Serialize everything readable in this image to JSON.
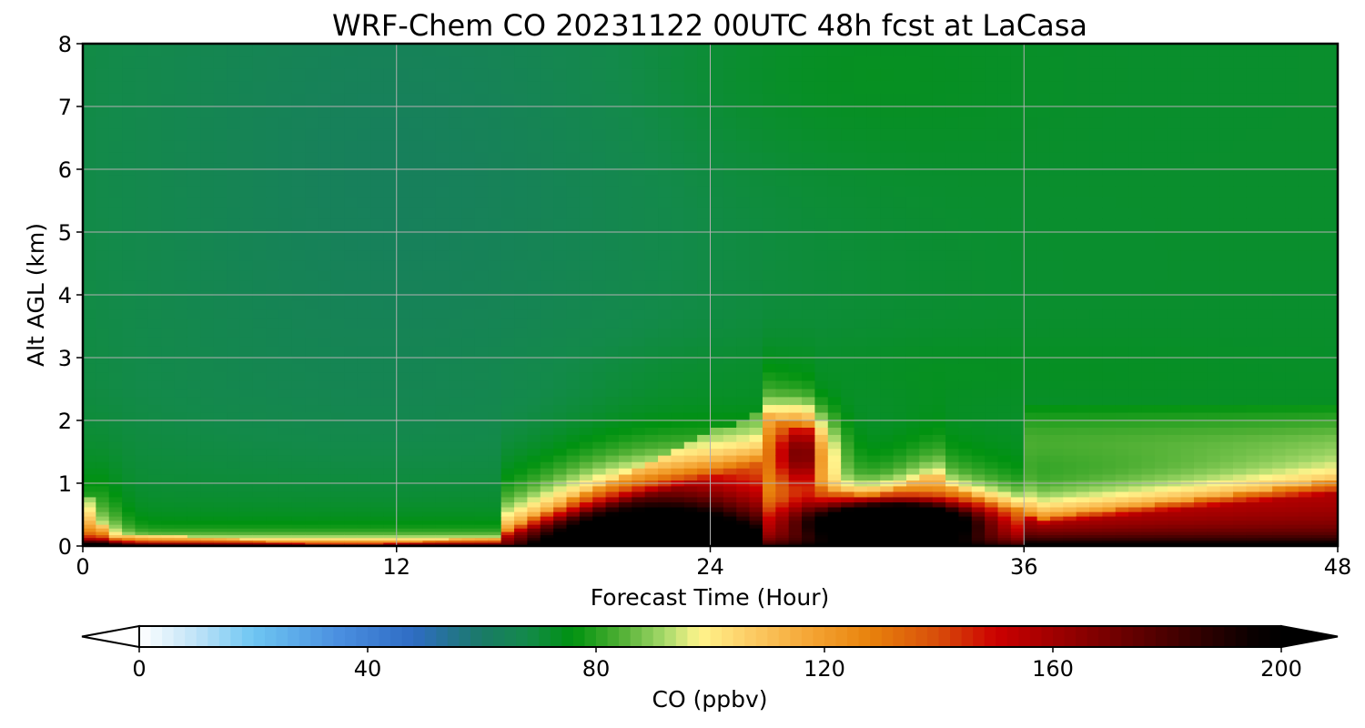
{
  "chart_data": {
    "type": "heatmap",
    "title": "WRF-Chem CO  20231122 00UTC 48h fcst at LaCasa",
    "xlabel": "Forecast Time (Hour)",
    "ylabel": "Alt AGL (km)",
    "xlim": [
      0,
      48
    ],
    "ylim": [
      0,
      8
    ],
    "xticks": [
      "0",
      "12",
      "24",
      "36",
      "48"
    ],
    "yticks": [
      "0",
      "1",
      "2",
      "3",
      "4",
      "5",
      "6",
      "7",
      "8"
    ],
    "grid": true,
    "colorbar": {
      "label": "CO  (ppbv)",
      "range": [
        0,
        200
      ],
      "ticks": [
        "0",
        "40",
        "80",
        "120",
        "160",
        "200"
      ],
      "extend": "both",
      "colors": [
        {
          "value": 0,
          "color": "#ffffff"
        },
        {
          "value": 10,
          "color": "#bfe3f7"
        },
        {
          "value": 20,
          "color": "#6ec6f2"
        },
        {
          "value": 35,
          "color": "#4a8fe0"
        },
        {
          "value": 48,
          "color": "#2f6cc4"
        },
        {
          "value": 60,
          "color": "#1a7a66"
        },
        {
          "value": 68,
          "color": "#138a4a"
        },
        {
          "value": 76,
          "color": "#009210"
        },
        {
          "value": 84,
          "color": "#4cae32"
        },
        {
          "value": 92,
          "color": "#a6d96a"
        },
        {
          "value": 98,
          "color": "#fff58c"
        },
        {
          "value": 106,
          "color": "#fdd06a"
        },
        {
          "value": 118,
          "color": "#f4a332"
        },
        {
          "value": 128,
          "color": "#e8820c"
        },
        {
          "value": 140,
          "color": "#d84d0a"
        },
        {
          "value": 150,
          "color": "#cc0000"
        },
        {
          "value": 165,
          "color": "#8b0000"
        },
        {
          "value": 180,
          "color": "#4a0000"
        },
        {
          "value": 195,
          "color": "#0a0000"
        },
        {
          "value": 200,
          "color": "#000000"
        }
      ]
    },
    "field": {
      "description_units": "CO ppbv at (hour, km)",
      "hours": [
        0,
        1,
        2,
        4,
        6,
        8,
        10,
        12,
        14,
        16,
        17,
        18,
        19,
        20,
        21,
        22,
        23,
        24,
        25,
        26,
        27,
        28,
        29,
        30,
        31,
        32,
        33,
        34,
        35,
        36,
        37,
        38,
        39,
        40,
        42,
        44,
        46,
        47,
        48
      ],
      "alt_km": [
        0,
        0.1,
        0.25,
        0.5,
        0.75,
        1.0,
        1.25,
        1.5,
        1.75,
        2.0,
        2.25,
        2.5,
        3.0,
        4.0,
        5.0,
        6.0,
        7.0,
        8.0
      ]
    }
  }
}
